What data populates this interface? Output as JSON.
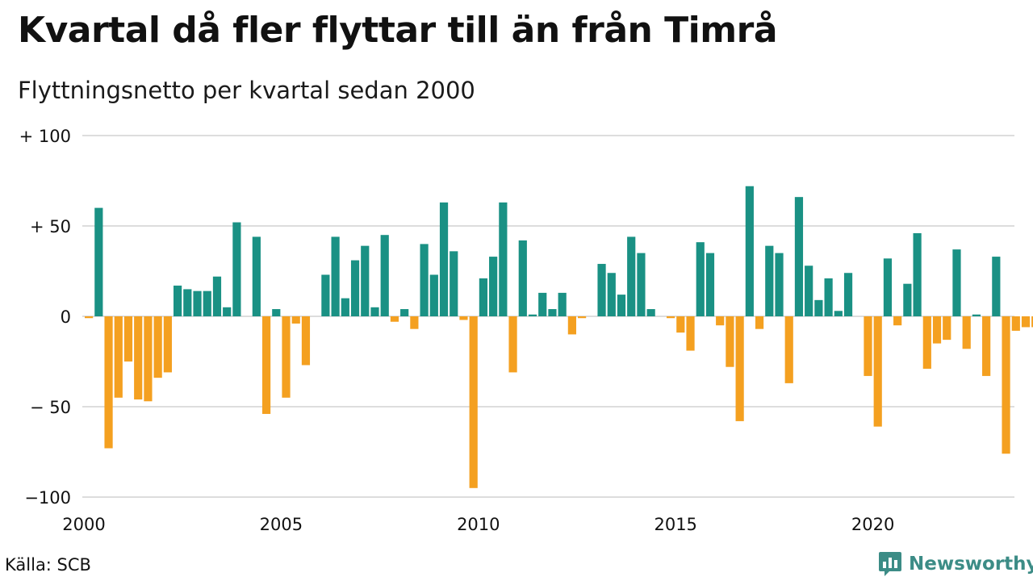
{
  "title": "Kvartal då fler flyttar till än från Timrå",
  "subtitle": "Flyttningsnetto per kvartal sedan 2000",
  "source": "Källa: SCB",
  "brand": {
    "name": "Newsworthy",
    "icon": "bar-chart-speech-bubble-icon",
    "color": "#3c8c86"
  },
  "colors": {
    "positive": "#1a9184",
    "negative": "#f4a020",
    "grid": "#dddddd"
  },
  "chart_data": {
    "type": "bar",
    "title": "Kvartal då fler flyttar till än från Timrå",
    "subtitle": "Flyttningsnetto per kvartal sedan 2000",
    "xlabel": "",
    "ylabel": "",
    "ylim": [
      -100,
      100
    ],
    "xlim": [
      2000,
      2023.5
    ],
    "grid": true,
    "y_ticks": [
      {
        "value": 100,
        "label": "+ 100"
      },
      {
        "value": 50,
        "label": "+  50"
      },
      {
        "value": 0,
        "label": "0"
      },
      {
        "value": -50,
        "label": "− 50"
      },
      {
        "value": -100,
        "label": "−100"
      }
    ],
    "x_ticks": [
      {
        "value": 2000,
        "label": "2000"
      },
      {
        "value": 2005,
        "label": "2005"
      },
      {
        "value": 2010,
        "label": "2010"
      },
      {
        "value": 2015,
        "label": "2015"
      },
      {
        "value": 2020,
        "label": "2020"
      }
    ],
    "categories": [
      "2000 Q1",
      "2000 Q2",
      "2000 Q3",
      "2000 Q4",
      "2001 Q1",
      "2001 Q2",
      "2001 Q3",
      "2001 Q4",
      "2002 Q1",
      "2002 Q2",
      "2002 Q3",
      "2002 Q4",
      "2003 Q1",
      "2003 Q2",
      "2003 Q3",
      "2003 Q4",
      "2004 Q1",
      "2004 Q2",
      "2004 Q3",
      "2004 Q4",
      "2005 Q1",
      "2005 Q2",
      "2005 Q3",
      "2005 Q4",
      "2006 Q1",
      "2006 Q2",
      "2006 Q3",
      "2006 Q4",
      "2007 Q1",
      "2007 Q2",
      "2007 Q3",
      "2007 Q4",
      "2008 Q1",
      "2008 Q2",
      "2008 Q3",
      "2008 Q4",
      "2009 Q1",
      "2009 Q2",
      "2009 Q3",
      "2009 Q4",
      "2010 Q1",
      "2010 Q2",
      "2010 Q3",
      "2010 Q4",
      "2011 Q1",
      "2011 Q2",
      "2011 Q3",
      "2011 Q4",
      "2012 Q1",
      "2012 Q2",
      "2012 Q3",
      "2012 Q4",
      "2013 Q1",
      "2013 Q2",
      "2013 Q3",
      "2013 Q4",
      "2014 Q1",
      "2014 Q2",
      "2014 Q3",
      "2014 Q4",
      "2015 Q1",
      "2015 Q2",
      "2015 Q3",
      "2015 Q4",
      "2016 Q1",
      "2016 Q2",
      "2016 Q3",
      "2016 Q4",
      "2017 Q1",
      "2017 Q2",
      "2017 Q3",
      "2017 Q4",
      "2018 Q1",
      "2018 Q2",
      "2018 Q3",
      "2018 Q4",
      "2019 Q1",
      "2019 Q2",
      "2019 Q3",
      "2019 Q4",
      "2020 Q1",
      "2020 Q2",
      "2020 Q3",
      "2020 Q4",
      "2021 Q1",
      "2021 Q2",
      "2021 Q3",
      "2021 Q4",
      "2022 Q1",
      "2022 Q2",
      "2022 Q3",
      "2022 Q4",
      "2023 Q1",
      "2023 Q2",
      "2023 Q3",
      "2023 Q4"
    ],
    "values": [
      -1,
      60,
      -73,
      -45,
      -25,
      -46,
      -47,
      -34,
      -31,
      17,
      15,
      14,
      14,
      22,
      5,
      52,
      0,
      44,
      -54,
      4,
      -45,
      -4,
      -27,
      0,
      23,
      44,
      10,
      31,
      39,
      5,
      45,
      -3,
      4,
      -7,
      40,
      23,
      63,
      36,
      -2,
      -95,
      21,
      33,
      63,
      -31,
      42,
      1,
      13,
      4,
      13,
      -10,
      -1,
      0,
      29,
      24,
      12,
      44,
      35,
      4,
      0,
      -1,
      -9,
      -19,
      41,
      35,
      -5,
      -28,
      -58,
      72,
      -7,
      39,
      35,
      -37,
      66,
      28,
      9,
      21,
      3,
      24,
      0,
      -33,
      -61,
      32,
      -5,
      18,
      46,
      -29,
      -15,
      -13,
      37,
      -18,
      1,
      -33,
      33,
      -76,
      -8,
      -6
    ],
    "trailing_values": [
      -6
    ]
  }
}
